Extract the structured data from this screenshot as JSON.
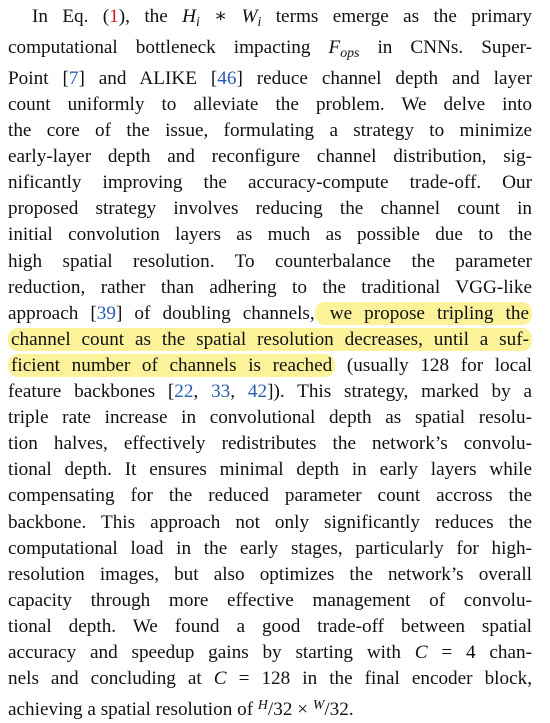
{
  "paragraph": {
    "l01a": "In Eq. (",
    "l01ref": "1",
    "l01b": "), the ",
    "l01H": "H",
    "l01i1": "i",
    "l01op": " ∗ ",
    "l01W": "W",
    "l01i2": "i",
    "l01c": " terms emerge as the primary",
    "l02a": "computational bottleneck impacting ",
    "l02F": "F",
    "l02sub": "ops",
    "l02b": " in CNNs. Super-",
    "l03a": "Point [",
    "l03ref1": "7",
    "l03b": "] and ALIKE [",
    "l03ref2": "46",
    "l03c": "] reduce channel depth and layer",
    "l04": "count uniformly to alleviate the problem.  We delve into",
    "l05": "the core of the issue, formulating a strategy to minimize",
    "l06": "early-layer depth and reconfigure channel distribution, sig-",
    "l07": "nificantly improving the accuracy-compute trade-off.  Our",
    "l08": "proposed strategy involves reducing the channel count in",
    "l09": "initial convolution layers as much as possible due to the",
    "l10": "high spatial resolution.  To counterbalance the parameter",
    "l11": "reduction, rather than adhering to the traditional VGG-like",
    "l12a": "approach [",
    "l12ref": "39",
    "l12b": "] of doubling channels,",
    "l12hl": " we propose tripling the",
    "l13hl": "channel count as the spatial resolution decreases, until a suf-",
    "l14hl": "ficient number of channels is reached",
    "l14b": " (usually 128 for local",
    "l15a": "feature backbones [",
    "l15ref1": "22",
    "l15sep1": ", ",
    "l15ref2": "33",
    "l15sep2": ", ",
    "l15ref3": "42",
    "l15b": "]). This strategy, marked by a",
    "l16": "triple rate increase in convolutional depth as spatial resolu-",
    "l17": "tion halves, effectively redistributes the network’s convolu-",
    "l18": "tional depth. It ensures minimal depth in early layers while",
    "l19": "compensating for the reduced parameter count accross the",
    "l20": "backbone. This approach not only significantly reduces the",
    "l21": "computational load in the early stages, particularly for high-",
    "l22": "resolution images, but also optimizes the network’s overall",
    "l23": "capacity through more effective management of convolu-",
    "l24": "tional depth.  We found a good trade-off between spatial",
    "l25a": "accuracy and speedup gains by starting with ",
    "l25C": "C",
    "l25eq": " = 4 chan-",
    "l26a": "nels and concluding at ",
    "l26C": "C",
    "l26eq": " = 128 in the final encoder block,",
    "l27a": "achieving a spatial resolution of ",
    "l27H": "H",
    "l27d1": "/32 × ",
    "l27W": "W",
    "l27d2": "/32."
  }
}
